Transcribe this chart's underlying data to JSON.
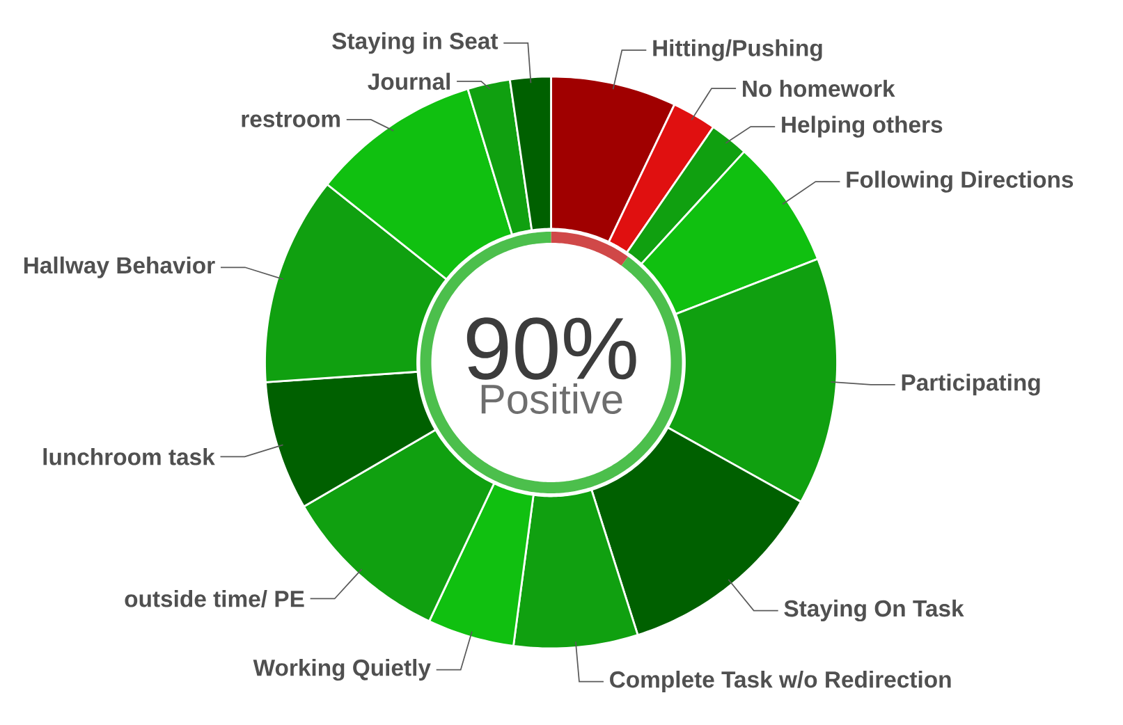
{
  "chart_data": [
    {
      "type": "donut",
      "categories": [
        "Hitting/Pushing",
        "No homework",
        "Helping others",
        "Following Directions",
        "Participating",
        "Staying On Task",
        "Complete Task w/o Redirection",
        "Working Quietly",
        "outside time/ PE",
        "lunchroom task",
        "Hallway Behavior",
        "restroom",
        "Journal",
        "Staying in Seat"
      ],
      "values": [
        7.1,
        2.5,
        2.2,
        7.3,
        14.0,
        12.0,
        7.0,
        4.9,
        9.6,
        7.3,
        11.8,
        9.6,
        2.4,
        2.3
      ],
      "colors": [
        "#a00000",
        "#e01010",
        "#10a010",
        "#10c010",
        "#10a010",
        "#006000",
        "#10a010",
        "#10c010",
        "#10a010",
        "#006000",
        "#10a010",
        "#10c010",
        "#10a010",
        "#006000"
      ]
    },
    {
      "type": "donut",
      "categories": [
        null,
        null
      ],
      "values": [
        10,
        90
      ],
      "colors": [
        "#d04848",
        "#4cbf4c"
      ],
      "annotations": [
        "90%",
        "Positive"
      ]
    }
  ]
}
